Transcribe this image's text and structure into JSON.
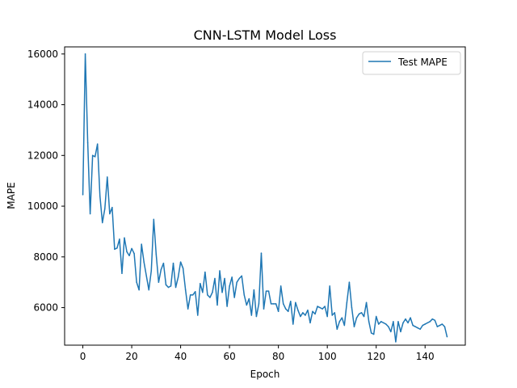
{
  "chart_data": {
    "type": "line",
    "title": "CNN-LSTM Model Loss",
    "xlabel": "Epoch",
    "ylabel": "MAPE",
    "xlim": [
      -7.45,
      156.45
    ],
    "ylim": [
      4520,
      16280
    ],
    "xticks": [
      0,
      20,
      40,
      60,
      80,
      100,
      120,
      140
    ],
    "yticks": [
      6000,
      8000,
      10000,
      12000,
      14000,
      16000
    ],
    "grid": false,
    "legend": {
      "position": "top-right"
    },
    "series": [
      {
        "name": "Test MAPE",
        "color": "#1f77b4",
        "x": [
          0,
          1,
          2,
          3,
          4,
          5,
          6,
          7,
          8,
          9,
          10,
          11,
          12,
          13,
          14,
          15,
          16,
          17,
          18,
          19,
          20,
          21,
          22,
          23,
          24,
          25,
          26,
          27,
          28,
          29,
          30,
          31,
          32,
          33,
          34,
          35,
          36,
          37,
          38,
          39,
          40,
          41,
          42,
          43,
          44,
          45,
          46,
          47,
          48,
          49,
          50,
          51,
          52,
          53,
          54,
          55,
          56,
          57,
          58,
          59,
          60,
          61,
          62,
          63,
          64,
          65,
          66,
          67,
          68,
          69,
          70,
          71,
          72,
          73,
          74,
          75,
          76,
          77,
          78,
          79,
          80,
          81,
          82,
          83,
          84,
          85,
          86,
          87,
          88,
          89,
          90,
          91,
          92,
          93,
          94,
          95,
          96,
          97,
          98,
          99,
          100,
          101,
          102,
          103,
          104,
          105,
          106,
          107,
          108,
          109,
          110,
          111,
          112,
          113,
          114,
          115,
          116,
          117,
          118,
          119,
          120,
          121,
          122,
          123,
          124,
          125,
          126,
          127,
          128,
          129,
          130,
          131,
          132,
          133,
          134,
          135,
          136,
          137,
          138,
          139,
          140,
          141,
          142,
          143,
          144,
          145,
          146,
          147,
          148,
          149
        ],
        "values": [
          10450,
          16000,
          12500,
          9700,
          12000,
          11950,
          12450,
          10400,
          9350,
          9900,
          11150,
          9700,
          9950,
          8300,
          8350,
          8700,
          7350,
          8750,
          8200,
          8050,
          8330,
          8130,
          7000,
          6700,
          8500,
          7800,
          7250,
          6700,
          7450,
          9480,
          8100,
          7000,
          7500,
          7750,
          6900,
          6800,
          6850,
          7750,
          6800,
          7200,
          7800,
          7550,
          6700,
          5950,
          6500,
          6500,
          6630,
          5700,
          6950,
          6600,
          7400,
          6500,
          6400,
          6600,
          7150,
          6100,
          7450,
          6600,
          7150,
          6050,
          6850,
          7200,
          6400,
          7000,
          7150,
          7250,
          6500,
          6100,
          6350,
          5700,
          6700,
          5650,
          6150,
          8150,
          5950,
          6650,
          6650,
          6150,
          6150,
          6150,
          5850,
          6850,
          6150,
          5950,
          5850,
          6250,
          5350,
          6200,
          5900,
          5650,
          5800,
          5700,
          5900,
          5400,
          5850,
          5750,
          6050,
          6000,
          5950,
          6050,
          5650,
          6850,
          5700,
          5800,
          5150,
          5450,
          5600,
          5300,
          6200,
          7000,
          6000,
          5250,
          5600,
          5750,
          5800,
          5650,
          6200,
          5450,
          5000,
          4950,
          5650,
          5350,
          5450,
          5400,
          5350,
          5250,
          5050,
          5450,
          4650,
          5450,
          5050,
          5400,
          5550,
          5400,
          5600,
          5300,
          5250,
          5200,
          5150,
          5300,
          5350,
          5400,
          5450,
          5550,
          5500,
          5250,
          5300,
          5350,
          5250,
          4850
        ]
      }
    ]
  }
}
